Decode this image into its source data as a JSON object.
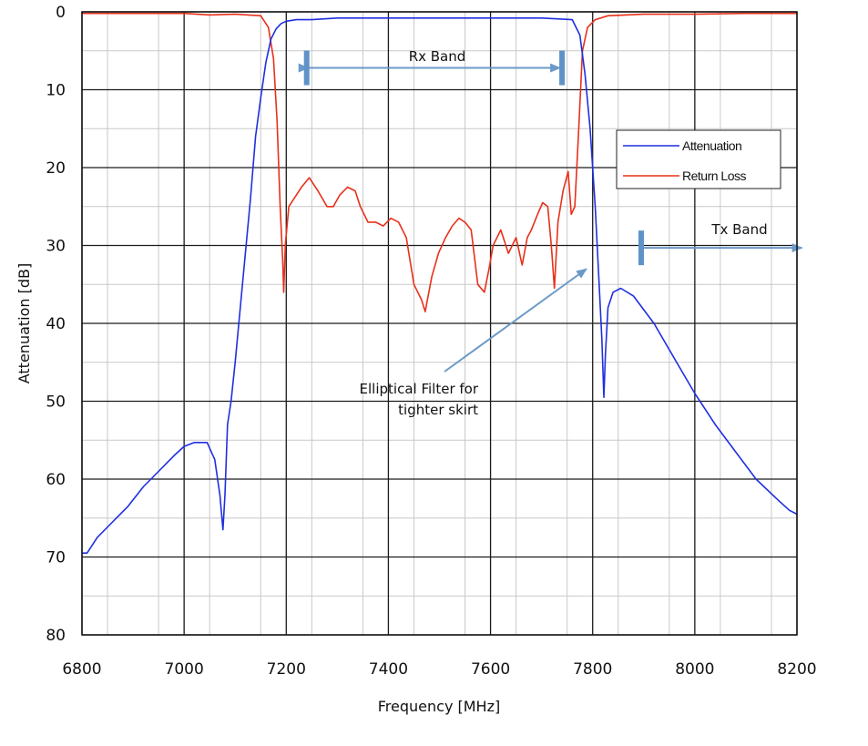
{
  "chart_data": {
    "type": "line",
    "xlabel": "Frequency [MHz]",
    "ylabel": "Attenuation [dB]",
    "xlim": [
      6800,
      8200
    ],
    "ylim": [
      80,
      0
    ],
    "y_inverted": true,
    "x_ticks": [
      6800,
      7000,
      7200,
      7400,
      7600,
      7800,
      8000,
      8200
    ],
    "y_ticks": [
      0,
      10,
      20,
      30,
      40,
      50,
      60,
      70,
      80
    ],
    "x_tick_labels": [
      "6800",
      "7000",
      "7200",
      "7400",
      "7600",
      "7800",
      "8000",
      "8200"
    ],
    "y_tick_labels": [
      "0",
      "10",
      "20",
      "30",
      "40",
      "50",
      "60",
      "70",
      "80"
    ],
    "grid": true,
    "legend_position": "top-right",
    "series": [
      {
        "name": "Attenuation",
        "color": "#1f2fe0",
        "x": [
          6800,
          6810,
          6830,
          6860,
          6890,
          6920,
          6950,
          6980,
          7000,
          7020,
          7045,
          7060,
          7070,
          7076,
          7080,
          7085,
          7092,
          7100,
          7110,
          7120,
          7130,
          7140,
          7150,
          7160,
          7170,
          7180,
          7190,
          7200,
          7220,
          7250,
          7300,
          7400,
          7500,
          7600,
          7700,
          7760,
          7775,
          7785,
          7795,
          7805,
          7812,
          7818,
          7822,
          7825,
          7830,
          7840,
          7855,
          7880,
          7920,
          7960,
          8000,
          8040,
          8080,
          8120,
          8160,
          8185,
          8200
        ],
        "y": [
          69.5,
          69.5,
          67.5,
          65.5,
          63.5,
          61,
          59,
          57,
          55.8,
          55.3,
          55.3,
          57.5,
          62,
          66.5,
          62,
          53,
          50,
          45,
          38,
          31,
          24,
          16,
          11,
          6.5,
          3.5,
          2.2,
          1.5,
          1.2,
          1,
          1,
          0.8,
          0.8,
          0.8,
          0.8,
          0.8,
          1,
          3,
          8,
          15,
          25,
          34,
          42,
          49.5,
          44,
          38,
          36,
          35.5,
          36.5,
          40,
          44.5,
          49,
          53,
          56.5,
          60,
          62.5,
          64,
          64.5
        ]
      },
      {
        "name": "Return Loss",
        "color": "#e8301a",
        "x": [
          6800,
          6900,
          7000,
          7050,
          7100,
          7150,
          7165,
          7175,
          7182,
          7188,
          7193,
          7195,
          7198,
          7205,
          7215,
          7230,
          7245,
          7262,
          7280,
          7292,
          7305,
          7320,
          7335,
          7345,
          7360,
          7375,
          7390,
          7405,
          7420,
          7435,
          7450,
          7465,
          7472,
          7485,
          7498,
          7512,
          7525,
          7538,
          7550,
          7562,
          7575,
          7588,
          7597,
          7605,
          7620,
          7635,
          7650,
          7662,
          7672,
          7680,
          7692,
          7702,
          7712,
          7719,
          7725,
          7732,
          7742,
          7752,
          7758,
          7765,
          7772,
          7780,
          7790,
          7805,
          7830,
          7900,
          8000,
          8100,
          8200
        ],
        "y": [
          0.2,
          0.2,
          0.2,
          0.4,
          0.3,
          0.5,
          2,
          6,
          14,
          25,
          32,
          36,
          30,
          25,
          24,
          22.5,
          21.3,
          23,
          25,
          25,
          23.5,
          22.5,
          23,
          25,
          27,
          27,
          27.5,
          26.5,
          27,
          29,
          35,
          37,
          38.5,
          34,
          31,
          29,
          27.5,
          26.5,
          27,
          28,
          35,
          36,
          33,
          30,
          28,
          31,
          29,
          32.5,
          29,
          28,
          26,
          24.5,
          25,
          30,
          35.5,
          27,
          23,
          20.5,
          26,
          25,
          16,
          5,
          2,
          1,
          0.5,
          0.3,
          0.3,
          0.2,
          0.2
        ]
      }
    ],
    "annotations": [
      {
        "text": "Rx Band",
        "type": "span-arrow",
        "x_from": 7240,
        "x_to": 7740,
        "y": 7.2
      },
      {
        "text": "Tx Band",
        "type": "span-arrow",
        "x_from": 7895,
        "x_to": 8210,
        "y": 30.3
      },
      {
        "text_lines": [
          "Elliptical Filter for",
          "tighter skirt"
        ],
        "type": "pointer-arrow",
        "target_x": 7788,
        "target_y": 33
      }
    ]
  }
}
